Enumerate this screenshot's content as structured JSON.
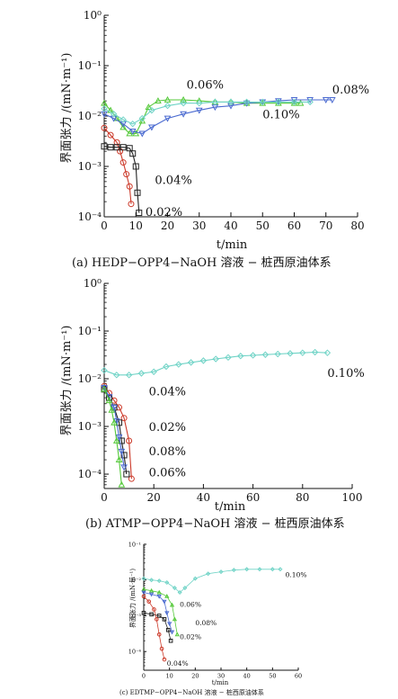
{
  "chart_data": [
    {
      "type": "scatter",
      "title": "",
      "caption": "(a) HEDP−OPP4−NaOH 溶液 − 桩西原油体系",
      "xlabel": "t/min",
      "ylabel": "界面张力 /(mN·m⁻¹)",
      "xlim": [
        0,
        80
      ],
      "ylim": [
        0.0001,
        1
      ],
      "y_scale": "log",
      "xticks": [
        0,
        10,
        20,
        30,
        40,
        50,
        60,
        70,
        80
      ],
      "xtick_labels": [
        "0",
        "10",
        "20",
        "30",
        "40",
        "50",
        "60",
        "70",
        "80"
      ],
      "yticks": [
        0.0001,
        0.001,
        0.01,
        0.1,
        1
      ],
      "ytick_labels": [
        "10⁻⁴",
        "10⁻³",
        "10⁻²",
        "10⁻¹",
        "10⁰"
      ],
      "series": [
        {
          "name": "0.06%",
          "color": "#55c93a",
          "marker": "triangle-up",
          "x": [
            0,
            2,
            4,
            6,
            8,
            10,
            12,
            14,
            17,
            20,
            25,
            30,
            35,
            40,
            45,
            50,
            55,
            60,
            62
          ],
          "y": [
            0.018,
            0.013,
            0.009,
            0.006,
            0.0045,
            0.0045,
            0.008,
            0.015,
            0.02,
            0.021,
            0.021,
            0.02,
            0.019,
            0.019,
            0.018,
            0.018,
            0.018,
            0.018,
            0.018
          ]
        },
        {
          "name": "0.08%",
          "color": "#4a6ad0",
          "marker": "triangle-down",
          "x": [
            0,
            3,
            6,
            9,
            12,
            15,
            20,
            25,
            30,
            35,
            40,
            45,
            50,
            55,
            60,
            65,
            70,
            72
          ],
          "y": [
            0.011,
            0.009,
            0.007,
            0.005,
            0.0045,
            0.006,
            0.009,
            0.011,
            0.013,
            0.015,
            0.016,
            0.018,
            0.019,
            0.02,
            0.021,
            0.021,
            0.021,
            0.021
          ]
        },
        {
          "name": "0.10%",
          "color": "#6fd3c6",
          "marker": "diamond",
          "x": [
            0,
            3,
            6,
            9,
            12,
            15,
            20,
            25,
            30,
            35,
            40,
            45,
            50,
            55,
            60,
            65
          ],
          "y": [
            0.014,
            0.011,
            0.0085,
            0.007,
            0.009,
            0.013,
            0.016,
            0.018,
            0.018,
            0.019,
            0.019,
            0.019,
            0.019,
            0.019,
            0.019,
            0.019
          ]
        },
        {
          "name": "0.04%",
          "color": "#cc3a2a",
          "marker": "circle",
          "x": [
            0,
            2,
            4,
            5,
            6,
            7,
            8,
            8.5
          ],
          "y": [
            0.0058,
            0.0042,
            0.003,
            0.002,
            0.0012,
            0.0007,
            0.0004,
            0.00018
          ]
        },
        {
          "name": "0.02%",
          "color": "#222222",
          "marker": "square",
          "x": [
            0,
            2,
            4,
            6,
            8,
            9,
            10,
            10.5,
            11
          ],
          "y": [
            0.0025,
            0.0024,
            0.0024,
            0.0024,
            0.0023,
            0.0018,
            0.001,
            0.0003,
            0.00012
          ]
        }
      ],
      "annotations": [
        {
          "text": "0.06%",
          "x": 26,
          "y": 0.035
        },
        {
          "text": "0.08%",
          "x": 72,
          "y": 0.028
        },
        {
          "text": "0.10%",
          "x": 50,
          "y": 0.009
        },
        {
          "text": "0.04%",
          "x": 16,
          "y": 0.00045
        },
        {
          "text": "0.02%",
          "x": 13,
          "y": 0.000105
        }
      ]
    },
    {
      "type": "scatter",
      "title": "",
      "caption": "(b) ATMP−OPP4−NaOH 溶液 − 桩西原油体系",
      "xlabel": "t/min",
      "ylabel": "界面张力 /(mN·m⁻¹)",
      "xlim": [
        0,
        100
      ],
      "ylim": [
        5e-05,
        1
      ],
      "y_scale": "log",
      "xticks": [
        0,
        20,
        40,
        60,
        80,
        100
      ],
      "xtick_labels": [
        "0",
        "20",
        "40",
        "60",
        "80",
        "100"
      ],
      "yticks": [
        0.0001,
        0.001,
        0.01,
        0.1,
        1
      ],
      "ytick_labels": [
        "10⁻⁴",
        "10⁻³",
        "10⁻²",
        "10⁻¹",
        "10⁰"
      ],
      "series": [
        {
          "name": "0.10%",
          "color": "#6fd3c6",
          "marker": "diamond",
          "x": [
            0,
            5,
            10,
            15,
            20,
            25,
            30,
            35,
            40,
            45,
            50,
            55,
            60,
            65,
            70,
            75,
            80,
            85,
            90
          ],
          "y": [
            0.015,
            0.012,
            0.012,
            0.013,
            0.014,
            0.018,
            0.02,
            0.022,
            0.024,
            0.026,
            0.028,
            0.03,
            0.031,
            0.032,
            0.033,
            0.034,
            0.035,
            0.036,
            0.035
          ]
        },
        {
          "name": "0.04%",
          "color": "#cc3a2a",
          "marker": "circle",
          "x": [
            0,
            2,
            4,
            6,
            8,
            10,
            11
          ],
          "y": [
            0.007,
            0.005,
            0.0035,
            0.0025,
            0.0015,
            0.0005,
            8e-05
          ]
        },
        {
          "name": "0.02%",
          "color": "#222222",
          "marker": "square",
          "x": [
            0,
            2,
            4,
            6,
            7,
            8,
            9
          ],
          "y": [
            0.006,
            0.004,
            0.0025,
            0.0012,
            0.0005,
            0.00025,
            0.0001
          ]
        },
        {
          "name": "0.08%",
          "color": "#4a6ad0",
          "marker": "triangle-down",
          "x": [
            0,
            2,
            4,
            5,
            6,
            7,
            8
          ],
          "y": [
            0.0065,
            0.0042,
            0.0025,
            0.0013,
            0.0006,
            0.0003,
            0.00014
          ]
        },
        {
          "name": "0.06%",
          "color": "#55c93a",
          "marker": "triangle-up",
          "x": [
            0,
            2,
            3,
            4,
            5,
            6,
            7
          ],
          "y": [
            0.006,
            0.0035,
            0.0022,
            0.0012,
            0.0005,
            0.0002,
            6e-05
          ]
        }
      ],
      "annotations": [
        {
          "text": "0.10%",
          "x": 90,
          "y": 0.011
        },
        {
          "text": "0.04%",
          "x": 18,
          "y": 0.0045
        },
        {
          "text": "0.02%",
          "x": 18,
          "y": 0.0008
        },
        {
          "text": "0.08%",
          "x": 18,
          "y": 0.00025
        },
        {
          "text": "0.06%",
          "x": 18,
          "y": 9e-05
        }
      ]
    },
    {
      "type": "scatter",
      "title": "",
      "caption": "(c) EDTMP−OPP4−NaOH 溶液 − 桩西原油体系",
      "xlabel": "t/min",
      "ylabel": "界面张力 /(mN·m⁻¹)",
      "xlim": [
        0,
        60
      ],
      "ylim": [
        3e-05,
        0.1
      ],
      "y_scale": "log",
      "xticks": [
        0,
        10,
        20,
        30,
        40,
        50,
        60
      ],
      "xtick_labels": [
        "0",
        "10",
        "20",
        "30",
        "40",
        "50",
        "60"
      ],
      "yticks": [
        0.0001,
        0.001,
        0.01,
        0.1
      ],
      "ytick_labels": [
        "10⁻⁴",
        "10⁻³",
        "10⁻²",
        "10⁻¹"
      ],
      "series": [
        {
          "name": "0.10%",
          "color": "#6fd3c6",
          "marker": "diamond",
          "x": [
            0,
            3,
            6,
            9,
            12,
            14,
            16,
            20,
            25,
            30,
            35,
            40,
            45,
            50,
            53
          ],
          "y": [
            0.011,
            0.01,
            0.0095,
            0.0085,
            0.006,
            0.0045,
            0.006,
            0.011,
            0.015,
            0.017,
            0.019,
            0.02,
            0.02,
            0.02,
            0.02
          ]
        },
        {
          "name": "0.06%",
          "color": "#55c93a",
          "marker": "triangle-up",
          "x": [
            0,
            3,
            6,
            9,
            11,
            12,
            13
          ],
          "y": [
            0.0055,
            0.005,
            0.0045,
            0.0035,
            0.002,
            0.0008,
            0.0003
          ]
        },
        {
          "name": "0.08%",
          "color": "#4a6ad0",
          "marker": "triangle-down",
          "x": [
            0,
            3,
            6,
            8,
            9,
            10,
            11
          ],
          "y": [
            0.0045,
            0.004,
            0.0035,
            0.0025,
            0.0012,
            0.0006,
            0.00035
          ]
        },
        {
          "name": "0.02%",
          "color": "#222222",
          "marker": "square",
          "x": [
            0,
            3,
            6,
            8,
            9.5,
            10.5
          ],
          "y": [
            0.0012,
            0.0011,
            0.001,
            0.0008,
            0.0004,
            0.0002
          ]
        },
        {
          "name": "0.04%",
          "color": "#cc3a2a",
          "marker": "circle",
          "x": [
            0,
            2,
            4,
            5,
            6,
            7,
            8
          ],
          "y": [
            0.0035,
            0.0025,
            0.0015,
            0.0008,
            0.0003,
            0.00012,
            6e-05
          ]
        }
      ],
      "annotations": [
        {
          "text": "0.10%",
          "x": 55,
          "y": 0.012
        },
        {
          "text": "0.06%",
          "x": 14,
          "y": 0.0018
        },
        {
          "text": "0.08%",
          "x": 20,
          "y": 0.00055
        },
        {
          "text": "0.02%",
          "x": 14,
          "y": 0.00022
        },
        {
          "text": "0.04%",
          "x": 9,
          "y": 4e-05
        }
      ]
    }
  ]
}
